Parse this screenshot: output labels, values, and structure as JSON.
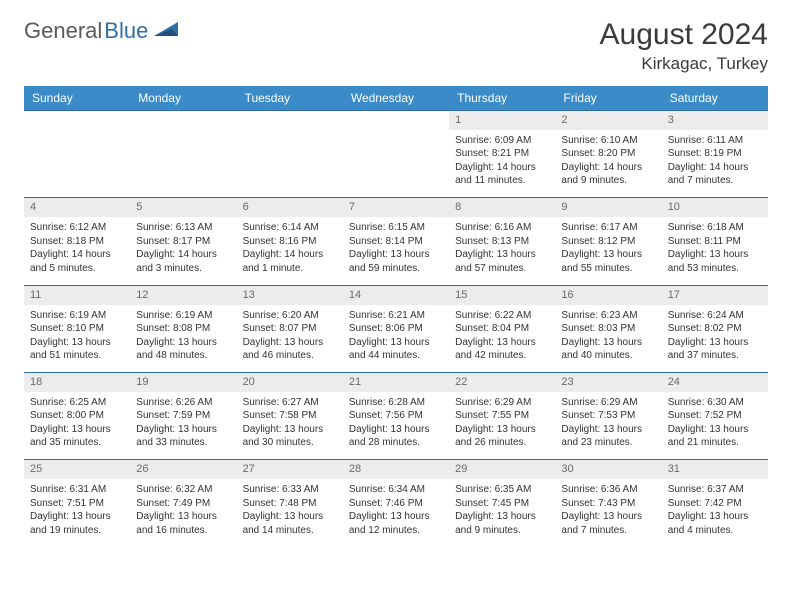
{
  "brand": {
    "part1": "General",
    "part2": "Blue"
  },
  "title": "August 2024",
  "location": "Kirkagac, Turkey",
  "colors": {
    "header_bg": "#3b8bc9",
    "border": "#2c6ba3",
    "daynum_bg": "#ececec",
    "text": "#333333",
    "brand_gray": "#5a5a5a",
    "brand_blue": "#2f6fa8"
  },
  "weekdays": [
    "Sunday",
    "Monday",
    "Tuesday",
    "Wednesday",
    "Thursday",
    "Friday",
    "Saturday"
  ],
  "weeks": [
    [
      null,
      null,
      null,
      null,
      {
        "n": "1",
        "sr": "Sunrise: 6:09 AM",
        "ss": "Sunset: 8:21 PM",
        "dl": "Daylight: 14 hours and 11 minutes."
      },
      {
        "n": "2",
        "sr": "Sunrise: 6:10 AM",
        "ss": "Sunset: 8:20 PM",
        "dl": "Daylight: 14 hours and 9 minutes."
      },
      {
        "n": "3",
        "sr": "Sunrise: 6:11 AM",
        "ss": "Sunset: 8:19 PM",
        "dl": "Daylight: 14 hours and 7 minutes."
      }
    ],
    [
      {
        "n": "4",
        "sr": "Sunrise: 6:12 AM",
        "ss": "Sunset: 8:18 PM",
        "dl": "Daylight: 14 hours and 5 minutes."
      },
      {
        "n": "5",
        "sr": "Sunrise: 6:13 AM",
        "ss": "Sunset: 8:17 PM",
        "dl": "Daylight: 14 hours and 3 minutes."
      },
      {
        "n": "6",
        "sr": "Sunrise: 6:14 AM",
        "ss": "Sunset: 8:16 PM",
        "dl": "Daylight: 14 hours and 1 minute."
      },
      {
        "n": "7",
        "sr": "Sunrise: 6:15 AM",
        "ss": "Sunset: 8:14 PM",
        "dl": "Daylight: 13 hours and 59 minutes."
      },
      {
        "n": "8",
        "sr": "Sunrise: 6:16 AM",
        "ss": "Sunset: 8:13 PM",
        "dl": "Daylight: 13 hours and 57 minutes."
      },
      {
        "n": "9",
        "sr": "Sunrise: 6:17 AM",
        "ss": "Sunset: 8:12 PM",
        "dl": "Daylight: 13 hours and 55 minutes."
      },
      {
        "n": "10",
        "sr": "Sunrise: 6:18 AM",
        "ss": "Sunset: 8:11 PM",
        "dl": "Daylight: 13 hours and 53 minutes."
      }
    ],
    [
      {
        "n": "11",
        "sr": "Sunrise: 6:19 AM",
        "ss": "Sunset: 8:10 PM",
        "dl": "Daylight: 13 hours and 51 minutes."
      },
      {
        "n": "12",
        "sr": "Sunrise: 6:19 AM",
        "ss": "Sunset: 8:08 PM",
        "dl": "Daylight: 13 hours and 48 minutes."
      },
      {
        "n": "13",
        "sr": "Sunrise: 6:20 AM",
        "ss": "Sunset: 8:07 PM",
        "dl": "Daylight: 13 hours and 46 minutes."
      },
      {
        "n": "14",
        "sr": "Sunrise: 6:21 AM",
        "ss": "Sunset: 8:06 PM",
        "dl": "Daylight: 13 hours and 44 minutes."
      },
      {
        "n": "15",
        "sr": "Sunrise: 6:22 AM",
        "ss": "Sunset: 8:04 PM",
        "dl": "Daylight: 13 hours and 42 minutes."
      },
      {
        "n": "16",
        "sr": "Sunrise: 6:23 AM",
        "ss": "Sunset: 8:03 PM",
        "dl": "Daylight: 13 hours and 40 minutes."
      },
      {
        "n": "17",
        "sr": "Sunrise: 6:24 AM",
        "ss": "Sunset: 8:02 PM",
        "dl": "Daylight: 13 hours and 37 minutes."
      }
    ],
    [
      {
        "n": "18",
        "sr": "Sunrise: 6:25 AM",
        "ss": "Sunset: 8:00 PM",
        "dl": "Daylight: 13 hours and 35 minutes."
      },
      {
        "n": "19",
        "sr": "Sunrise: 6:26 AM",
        "ss": "Sunset: 7:59 PM",
        "dl": "Daylight: 13 hours and 33 minutes."
      },
      {
        "n": "20",
        "sr": "Sunrise: 6:27 AM",
        "ss": "Sunset: 7:58 PM",
        "dl": "Daylight: 13 hours and 30 minutes."
      },
      {
        "n": "21",
        "sr": "Sunrise: 6:28 AM",
        "ss": "Sunset: 7:56 PM",
        "dl": "Daylight: 13 hours and 28 minutes."
      },
      {
        "n": "22",
        "sr": "Sunrise: 6:29 AM",
        "ss": "Sunset: 7:55 PM",
        "dl": "Daylight: 13 hours and 26 minutes."
      },
      {
        "n": "23",
        "sr": "Sunrise: 6:29 AM",
        "ss": "Sunset: 7:53 PM",
        "dl": "Daylight: 13 hours and 23 minutes."
      },
      {
        "n": "24",
        "sr": "Sunrise: 6:30 AM",
        "ss": "Sunset: 7:52 PM",
        "dl": "Daylight: 13 hours and 21 minutes."
      }
    ],
    [
      {
        "n": "25",
        "sr": "Sunrise: 6:31 AM",
        "ss": "Sunset: 7:51 PM",
        "dl": "Daylight: 13 hours and 19 minutes."
      },
      {
        "n": "26",
        "sr": "Sunrise: 6:32 AM",
        "ss": "Sunset: 7:49 PM",
        "dl": "Daylight: 13 hours and 16 minutes."
      },
      {
        "n": "27",
        "sr": "Sunrise: 6:33 AM",
        "ss": "Sunset: 7:48 PM",
        "dl": "Daylight: 13 hours and 14 minutes."
      },
      {
        "n": "28",
        "sr": "Sunrise: 6:34 AM",
        "ss": "Sunset: 7:46 PM",
        "dl": "Daylight: 13 hours and 12 minutes."
      },
      {
        "n": "29",
        "sr": "Sunrise: 6:35 AM",
        "ss": "Sunset: 7:45 PM",
        "dl": "Daylight: 13 hours and 9 minutes."
      },
      {
        "n": "30",
        "sr": "Sunrise: 6:36 AM",
        "ss": "Sunset: 7:43 PM",
        "dl": "Daylight: 13 hours and 7 minutes."
      },
      {
        "n": "31",
        "sr": "Sunrise: 6:37 AM",
        "ss": "Sunset: 7:42 PM",
        "dl": "Daylight: 13 hours and 4 minutes."
      }
    ]
  ]
}
